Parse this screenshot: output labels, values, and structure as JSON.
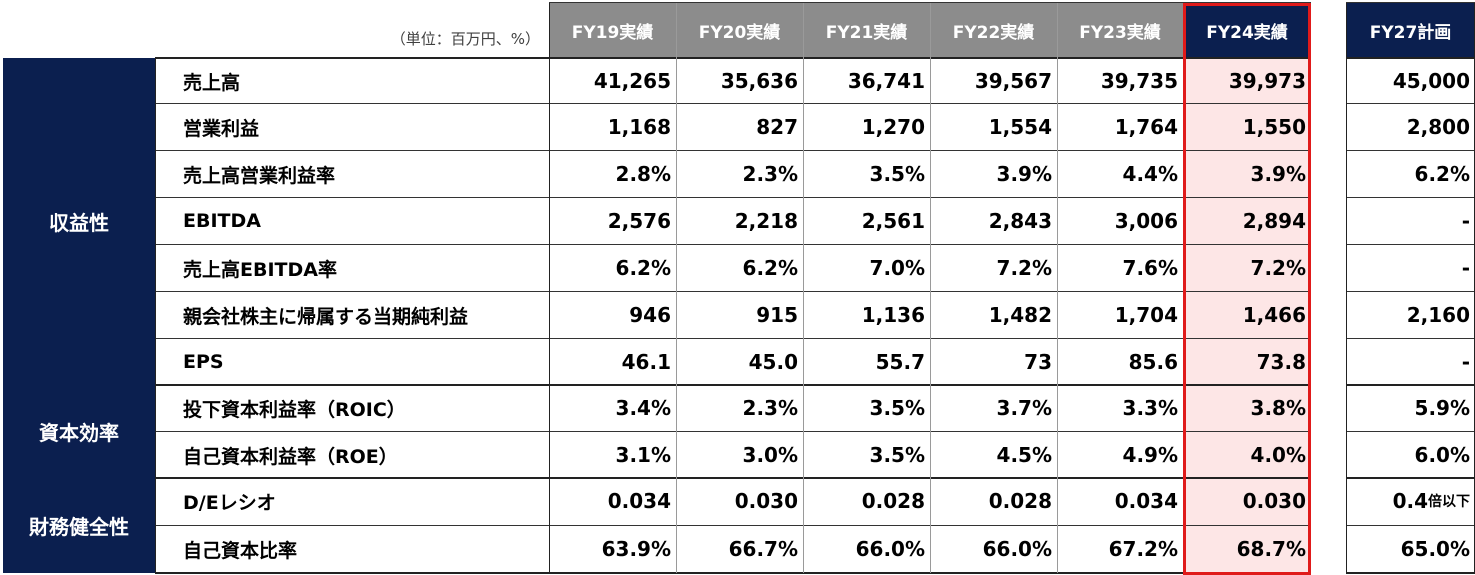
{
  "unit_note": "（単位：百万円、%）",
  "columns": [
    "FY19実績",
    "FY20実績",
    "FY21実績",
    "FY22実績",
    "FY23実績",
    "FY24実績"
  ],
  "plan_column": "FY27計画",
  "categories": [
    "収益性",
    "資本効率",
    "財務健全性"
  ],
  "rows": [
    {
      "label": "売上高",
      "values": [
        "41,265",
        "35,636",
        "36,741",
        "39,567",
        "39,735",
        "39,973"
      ],
      "plan": "45,000"
    },
    {
      "label": "営業利益",
      "values": [
        "1,168",
        "827",
        "1,270",
        "1,554",
        "1,764",
        "1,550"
      ],
      "plan": "2,800"
    },
    {
      "label": "売上高営業利益率",
      "values": [
        "2.8%",
        "2.3%",
        "3.5%",
        "3.9%",
        "4.4%",
        "3.9%"
      ],
      "plan": "6.2%"
    },
    {
      "label": "EBITDA",
      "values": [
        "2,576",
        "2,218",
        "2,561",
        "2,843",
        "3,006",
        "2,894"
      ],
      "plan": "-"
    },
    {
      "label": "売上高EBITDA率",
      "values": [
        "6.2%",
        "6.2%",
        "7.0%",
        "7.2%",
        "7.6%",
        "7.2%"
      ],
      "plan": "-"
    },
    {
      "label": "親会社株主に帰属する当期純利益",
      "values": [
        "946",
        "915",
        "1,136",
        "1,482",
        "1,704",
        "1,466"
      ],
      "plan": "2,160"
    },
    {
      "label": "EPS",
      "values": [
        "46.1",
        "45.0",
        "55.7",
        "73",
        "85.6",
        "73.8"
      ],
      "plan": "-"
    },
    {
      "label": "投下資本利益率（ROIC）",
      "values": [
        "3.4%",
        "2.3%",
        "3.5%",
        "3.7%",
        "3.3%",
        "3.8%"
      ],
      "plan": "5.9%"
    },
    {
      "label": "自己資本利益率（ROE）",
      "values": [
        "3.1%",
        "3.0%",
        "3.5%",
        "4.5%",
        "4.9%",
        "4.0%"
      ],
      "plan": "6.0%"
    },
    {
      "label": "D/Eレシオ",
      "values": [
        "0.034",
        "0.030",
        "0.028",
        "0.028",
        "0.034",
        "0.030"
      ],
      "plan": "0.4",
      "plan_suffix": "倍以下"
    },
    {
      "label": "自己資本比率",
      "values": [
        "63.9%",
        "66.7%",
        "66.0%",
        "66.0%",
        "67.2%",
        "68.7%"
      ],
      "plan": "65.0%"
    }
  ],
  "colors": {
    "header_grey": "#8c8c8c",
    "navy": "#0b1f4f",
    "highlight_fill": "#fde6e6",
    "highlight_border": "#e01a1a"
  }
}
